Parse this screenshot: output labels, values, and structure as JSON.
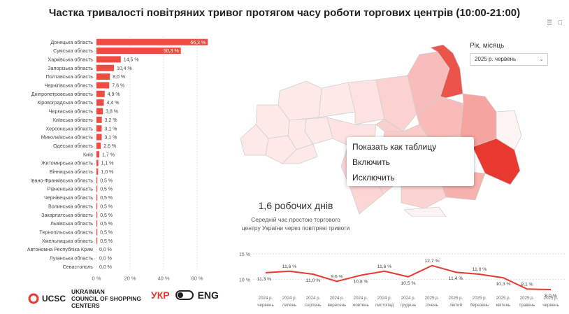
{
  "title": "Частка тривалості повітряних тривог протягом часу роботи торгових центрів (10:00-21:00)",
  "header_icons": [
    "filter-icon",
    "more-options-icon"
  ],
  "period": {
    "label": "Рік, місяць",
    "value": "2025 р. червень"
  },
  "context_menu": {
    "items": [
      "Показать как таблицу",
      "Включить",
      "Исключить"
    ]
  },
  "kpi": {
    "value": "1,6 робочих днів",
    "caption_line1": "Середній час простою торгового",
    "caption_line2": "центру України через повітряні тривоги"
  },
  "brand": {
    "mark": "UCSC",
    "line1": "UKRAINIAN",
    "line2": "COUNCIL OF SHOPPING",
    "line3": "CENTERS"
  },
  "language": {
    "ukr": "УКР",
    "eng": "ENG"
  },
  "colors": {
    "accent": "#e8392f",
    "bar": "#ef4b43",
    "map_bg": "#ffffff",
    "map_border": "#dcdcdc"
  },
  "chart_data": [
    {
      "type": "bar",
      "orientation": "horizontal",
      "categories": [
        "Донецька область",
        "Сумська область",
        "Харківська область",
        "Запорізька область",
        "Полтавська область",
        "Чернігівська область",
        "Дніпропетровська область",
        "Кіровоградська область",
        "Черкаська область",
        "Київська область",
        "Херсонська область",
        "Миколаївська область",
        "Одеська область",
        "Київ",
        "Житомирська область",
        "Вінницька область",
        "Івано-Франківська область",
        "Рівненська область",
        "Чернівецька область",
        "Волинська область",
        "Закарпатська область",
        "Львівська область",
        "Тернопільська область",
        "Хмельницька область",
        "Автономна Республіка Крим",
        "Луганська область",
        "Севастополь"
      ],
      "values": [
        66.3,
        50.3,
        14.5,
        10.4,
        8.0,
        7.6,
        4.9,
        4.4,
        3.8,
        3.2,
        3.1,
        3.1,
        2.6,
        1.7,
        1.1,
        1.0,
        0.5,
        0.5,
        0.5,
        0.5,
        0.5,
        0.5,
        0.5,
        0.5,
        0.0,
        0.0,
        0.0
      ],
      "value_labels": [
        "66,3 %",
        "50,3 %",
        "14,5 %",
        "10,4 %",
        "8,0 %",
        "7,6 %",
        "4,9 %",
        "4,4 %",
        "3,8 %",
        "3,2 %",
        "3,1 %",
        "3,1 %",
        "2,6 %",
        "1,7 %",
        "1,1 %",
        "1,0 %",
        "0,5 %",
        "0,5 %",
        "0,5 %",
        "0,5 %",
        "0,5 %",
        "0,5 %",
        "0,5 %",
        "0,5 %",
        "0,0 %",
        "0,0 %",
        "0,0 %"
      ],
      "x_ticks": [
        "0 %",
        "20 %",
        "40 %",
        "60 %"
      ],
      "xlim": [
        0,
        70
      ],
      "grid": true
    },
    {
      "type": "line",
      "x": [
        "2024 р. червень",
        "2024 р. липень",
        "2024 р. серпень",
        "2024 р. вересень",
        "2024 р. жовтень",
        "2024 р. листопад",
        "2024 р. грудень",
        "2025 р. січень",
        "2025 р. лютий",
        "2025 р. березень",
        "2025 р. квітень",
        "2025 р. травень",
        "2025 р. червень"
      ],
      "values": [
        11.3,
        11.6,
        11.0,
        9.6,
        10.8,
        11.6,
        10.5,
        12.7,
        11.4,
        11.0,
        10.3,
        8.1,
        8.0
      ],
      "value_labels": [
        "11,3 %",
        "11,6 %",
        "11,0 %",
        "9,6 %",
        "10,8 %",
        "11,6 %",
        "10,5 %",
        "12,7 %",
        "11,4 %",
        "11,0 %",
        "10,3 %",
        "8,1 %",
        "8,0 %"
      ],
      "y_ticks": [
        "15 %",
        "10 %"
      ],
      "ylim": [
        8,
        15
      ],
      "grid": true
    }
  ],
  "map_regions": [
    {
      "name": "Волинська область",
      "value": 0.5
    },
    {
      "name": "Рівненська область",
      "value": 0.5
    },
    {
      "name": "Житомирська область",
      "value": 1.1
    },
    {
      "name": "Київська область",
      "value": 3.2
    },
    {
      "name": "Чернігівська область",
      "value": 7.6
    },
    {
      "name": "Сумська область",
      "value": 50.3
    },
    {
      "name": "Харківська область",
      "value": 14.5
    },
    {
      "name": "Полтавська область",
      "value": 8.0
    },
    {
      "name": "Донецька область",
      "value": 66.3
    },
    {
      "name": "Луганська область",
      "value": 0.0
    },
    {
      "name": "Запорізька область",
      "value": 10.4
    },
    {
      "name": "Дніпропетровська область",
      "value": 4.9
    },
    {
      "name": "Херсонська область",
      "value": 3.1
    },
    {
      "name": "Миколаївська область",
      "value": 3.1
    },
    {
      "name": "Одеська область",
      "value": 2.6
    },
    {
      "name": "Кіровоградська область",
      "value": 4.4
    },
    {
      "name": "Черкаська область",
      "value": 3.8
    },
    {
      "name": "Вінницька область",
      "value": 1.0
    },
    {
      "name": "Хмельницька область",
      "value": 0.5
    },
    {
      "name": "Тернопільська область",
      "value": 0.5
    },
    {
      "name": "Львівська область",
      "value": 0.5
    },
    {
      "name": "Закарпатська область",
      "value": 0.5
    },
    {
      "name": "Івано-Франківська область",
      "value": 0.5
    },
    {
      "name": "Чернівецька область",
      "value": 0.5
    },
    {
      "name": "Автономна Республіка Крим",
      "value": 0.0
    }
  ]
}
